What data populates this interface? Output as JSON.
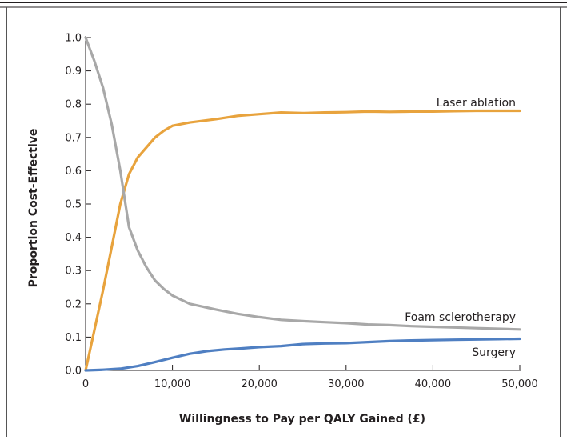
{
  "chart_data": {
    "type": "line",
    "title": "",
    "xlabel": "Willingness to Pay per QALY Gained (£)",
    "ylabel": "Proportion Cost-Effective",
    "xlim": [
      0,
      50000
    ],
    "ylim": [
      0,
      1.0
    ],
    "x_ticks": [
      {
        "value": 0,
        "label": "0"
      },
      {
        "value": 10000,
        "label": "10,000"
      },
      {
        "value": 20000,
        "label": "20,000"
      },
      {
        "value": 30000,
        "label": "30,000"
      },
      {
        "value": 40000,
        "label": "40,000"
      },
      {
        "value": 50000,
        "label": "50,000"
      }
    ],
    "y_ticks": [
      {
        "value": 0.0,
        "label": "0.0"
      },
      {
        "value": 0.1,
        "label": "0.1"
      },
      {
        "value": 0.2,
        "label": "0.2"
      },
      {
        "value": 0.3,
        "label": "0.3"
      },
      {
        "value": 0.4,
        "label": "0.4"
      },
      {
        "value": 0.5,
        "label": "0.5"
      },
      {
        "value": 0.6,
        "label": "0.6"
      },
      {
        "value": 0.7,
        "label": "0.7"
      },
      {
        "value": 0.8,
        "label": "0.8"
      },
      {
        "value": 0.9,
        "label": "0.9"
      },
      {
        "value": 1.0,
        "label": "1.0"
      }
    ],
    "grid": false,
    "series": [
      {
        "name": "Laser ablation",
        "color": "#e8a33d",
        "points": [
          [
            0,
            0
          ],
          [
            1000,
            0.12
          ],
          [
            2000,
            0.24
          ],
          [
            3000,
            0.37
          ],
          [
            4000,
            0.5
          ],
          [
            5000,
            0.59
          ],
          [
            6000,
            0.64
          ],
          [
            7000,
            0.67
          ],
          [
            8000,
            0.7
          ],
          [
            9000,
            0.72
          ],
          [
            10000,
            0.735
          ],
          [
            12000,
            0.745
          ],
          [
            15000,
            0.755
          ],
          [
            17500,
            0.765
          ],
          [
            20000,
            0.77
          ],
          [
            22500,
            0.775
          ],
          [
            25000,
            0.773
          ],
          [
            27500,
            0.775
          ],
          [
            30000,
            0.776
          ],
          [
            32500,
            0.778
          ],
          [
            35000,
            0.777
          ],
          [
            37500,
            0.778
          ],
          [
            40000,
            0.778
          ],
          [
            42500,
            0.779
          ],
          [
            45000,
            0.78
          ],
          [
            47500,
            0.78
          ],
          [
            50000,
            0.78
          ]
        ],
        "label_text": "Laser ablation"
      },
      {
        "name": "Foam sclerotherapy",
        "color": "#a8a8a8",
        "points": [
          [
            0,
            1.0
          ],
          [
            1000,
            0.93
          ],
          [
            2000,
            0.85
          ],
          [
            3000,
            0.74
          ],
          [
            4000,
            0.6
          ],
          [
            5000,
            0.43
          ],
          [
            6000,
            0.36
          ],
          [
            7000,
            0.31
          ],
          [
            8000,
            0.27
          ],
          [
            9000,
            0.245
          ],
          [
            10000,
            0.225
          ],
          [
            12000,
            0.2
          ],
          [
            15000,
            0.183
          ],
          [
            17500,
            0.17
          ],
          [
            20000,
            0.16
          ],
          [
            22500,
            0.152
          ],
          [
            25000,
            0.148
          ],
          [
            27500,
            0.145
          ],
          [
            30000,
            0.142
          ],
          [
            32500,
            0.138
          ],
          [
            35000,
            0.136
          ],
          [
            37500,
            0.133
          ],
          [
            40000,
            0.131
          ],
          [
            42500,
            0.129
          ],
          [
            45000,
            0.127
          ],
          [
            47500,
            0.125
          ],
          [
            50000,
            0.123
          ]
        ],
        "label_text": "Foam sclerotherapy"
      },
      {
        "name": "Surgery",
        "color": "#4f7fc2",
        "points": [
          [
            0,
            0
          ],
          [
            2000,
            0.002
          ],
          [
            4000,
            0.005
          ],
          [
            6000,
            0.013
          ],
          [
            8000,
            0.025
          ],
          [
            10000,
            0.038
          ],
          [
            12000,
            0.05
          ],
          [
            14000,
            0.058
          ],
          [
            16000,
            0.063
          ],
          [
            18000,
            0.066
          ],
          [
            20000,
            0.07
          ],
          [
            22500,
            0.073
          ],
          [
            25000,
            0.079
          ],
          [
            27500,
            0.081
          ],
          [
            30000,
            0.082
          ],
          [
            32500,
            0.085
          ],
          [
            35000,
            0.088
          ],
          [
            37500,
            0.09
          ],
          [
            40000,
            0.091
          ],
          [
            42500,
            0.092
          ],
          [
            45000,
            0.093
          ],
          [
            47500,
            0.094
          ],
          [
            50000,
            0.095
          ]
        ],
        "label_text": "Surgery"
      }
    ]
  }
}
